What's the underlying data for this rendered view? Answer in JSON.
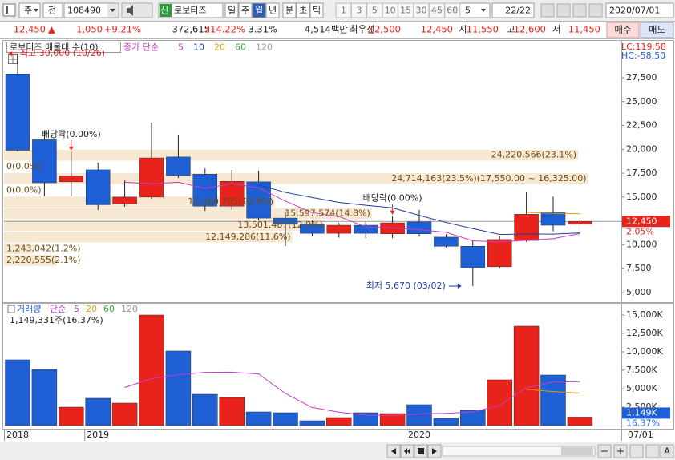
{
  "toolbar": {
    "code_type": "주",
    "period_type": "전",
    "code": "108490",
    "badge": "신",
    "name": "로보티즈",
    "periods": [
      "일",
      "주",
      "월",
      "년",
      "분",
      "초",
      "틱"
    ],
    "selected_period": "월",
    "intervals": [
      "1",
      "3",
      "5",
      "10",
      "15",
      "30",
      "45",
      "60"
    ],
    "interval_value": "5",
    "count": "22/22",
    "date": "2020/07/01"
  },
  "quote": {
    "price": "12,450",
    "change_sign": "▲",
    "change": "1,050",
    "change_pct": "+9.21%",
    "volume": "372,615",
    "volume_ratio": "214.22%",
    "turnover": "3.31%",
    "amount": "4,514백만",
    "best_label": "최우선",
    "ask": "12,500",
    "bid": "12,450",
    "open_label": "시",
    "open": "11,550",
    "high_label": "고",
    "high": "12,600",
    "low_label": "저",
    "low": "11,450",
    "buy": "매수",
    "sell": "매도"
  },
  "chart_data": [
    {
      "type": "candlestick",
      "title": "로보티즈 매물대 수(10)",
      "open": [
        27900,
        21000,
        16600,
        17850,
        14300,
        15000,
        19200,
        17400,
        14050,
        16600,
        12800,
        12150,
        11200,
        12050,
        11150,
        12400,
        10800,
        9850,
        7700,
        10450,
        13400,
        12150
      ],
      "high": [
        30000,
        22000,
        19700,
        18600,
        16750,
        22800,
        21550,
        18000,
        17850,
        17750,
        13400,
        12550,
        12300,
        12450,
        13000,
        13650,
        11100,
        10450,
        10900,
        15500,
        15050,
        12600
      ],
      "low": [
        19800,
        15100,
        15100,
        13650,
        14000,
        14800,
        17000,
        13550,
        13650,
        12550,
        9870,
        10900,
        10750,
        10700,
        10700,
        10880,
        9700,
        5670,
        7500,
        10290,
        11400,
        11450
      ],
      "close": [
        19900,
        16500,
        17200,
        14200,
        15000,
        19100,
        17250,
        14050,
        16650,
        12800,
        12150,
        11200,
        12050,
        11200,
        12300,
        11150,
        9850,
        7600,
        10550,
        13200,
        12050,
        12450
      ],
      "up_color": "#e8231b",
      "down_color": "#1f5fd6",
      "ylim": [
        4160,
        31280
      ],
      "yticks": [
        {
          "value": 5000,
          "label": "5,000"
        },
        {
          "value": 7500,
          "label": "7,500"
        },
        {
          "value": 10000,
          "label": "10,000"
        },
        {
          "value": 12500,
          "label": "12,500"
        },
        {
          "value": 15000,
          "label": "15,000"
        },
        {
          "value": 17500,
          "label": "17,500"
        },
        {
          "value": 20000,
          "label": "20,000"
        },
        {
          "value": 22500,
          "label": "22,500"
        },
        {
          "value": 25000,
          "label": "25,000"
        },
        {
          "value": 27500,
          "label": "27,500"
        }
      ],
      "moving_averages": {
        "label": "종가 단순",
        "series": [
          {
            "name": "5",
            "color": "#c63bc6",
            "values": [
              null,
              null,
              null,
              null,
              16560,
              16400,
              16550,
              15920,
              16410,
              15970,
              14580,
              13370,
              12970,
              11880,
              11780,
              11580,
              11310,
              10420,
              10290,
              10470,
              10650,
              11170
            ]
          },
          {
            "name": "10",
            "color": "#1f3da0",
            "values": [
              null,
              null,
              null,
              null,
              null,
              null,
              null,
              null,
              null,
              16265,
              15490,
              14960,
              14445,
              14145,
              13875,
              13080,
              12340,
              11695,
              11085,
              11125,
              11115,
              11240
            ]
          },
          {
            "name": "20",
            "color": "#e0a000",
            "values": [
              null,
              null,
              null,
              null,
              null,
              null,
              null,
              null,
              null,
              null,
              null,
              null,
              null,
              null,
              null,
              null,
              null,
              null,
              null,
              13400,
              13300,
              13250
            ]
          },
          {
            "name": "60",
            "color": "#3aa03a",
            "values": [
              null,
              null,
              null,
              null,
              null,
              null,
              null,
              null,
              null,
              null,
              null,
              null,
              null,
              null,
              null,
              null,
              null,
              null,
              null,
              null,
              null,
              null
            ]
          },
          {
            "name": "120",
            "color": "#999999",
            "values": [
              null,
              null,
              null,
              null,
              null,
              null,
              null,
              null,
              null,
              null,
              null,
              null,
              null,
              null,
              null,
              null,
              null,
              null,
              null,
              null,
              null,
              null
            ]
          }
        ]
      },
      "volume_profile": [
        {
          "label": "24,220,566(23.1%)",
          "volume": 24220566,
          "percent": 23.1,
          "high": 20000,
          "low": 18775
        },
        {
          "label": "0(0.0%)",
          "volume": 0,
          "percent": 0,
          "high": 18775,
          "low": 17550
        },
        {
          "label": "24,714,163(23.5%)(17,550.00 ~ 16,325.00)",
          "volume": 24714163,
          "percent": 23.5,
          "high": 17550,
          "low": 16325
        },
        {
          "label": "0(0.0%)",
          "volume": 0,
          "percent": 0,
          "high": 16325,
          "low": 15100
        },
        {
          "label": "11,400,795(10.9%)",
          "volume": 11400795,
          "percent": 10.9,
          "high": 15100,
          "low": 13875
        },
        {
          "label": "15,597,574(14.8%)",
          "volume": 15597574,
          "percent": 14.8,
          "high": 13875,
          "low": 12650
        },
        {
          "label": "13,501,487(12.9%)",
          "volume": 13501487,
          "percent": 12.9,
          "high": 12650,
          "low": 11425
        },
        {
          "label": "12,149,286(11.6%)",
          "volume": 12149286,
          "percent": 11.6,
          "high": 11425,
          "low": 10200
        },
        {
          "label": "1,243,042(1.2%)",
          "volume": 1243042,
          "percent": 1.2,
          "high": 10200,
          "low": 8975
        },
        {
          "label": "2,220,555(2.1%)",
          "volume": 2220555,
          "percent": 2.1,
          "high": 8975,
          "low": 7750
        }
      ],
      "high_note": {
        "text": "최고 30,000 (10/26)",
        "value": 30000
      },
      "low_note": {
        "text": "최저 5,670 (03/02)",
        "value": 5670
      },
      "dividend_labels": [
        null,
        null,
        "배당락(0.00%)",
        null,
        null,
        null,
        null,
        null,
        null,
        null,
        null,
        null,
        null,
        null,
        "배당락(0.00%)",
        null,
        null,
        null,
        null,
        null,
        null,
        null
      ],
      "last_price": {
        "value": 12450,
        "label": "12,450"
      },
      "last_change": "2.05%",
      "lc": "LC:119.58",
      "hc": "HC:-58.50"
    },
    {
      "type": "bar",
      "title": "거래량",
      "categories": [
        "2018",
        null,
        null,
        "2019",
        null,
        null,
        null,
        null,
        null,
        null,
        null,
        null,
        null,
        null,
        null,
        "2020",
        null,
        null,
        null,
        null,
        null,
        null
      ],
      "values": [
        8913,
        7609,
        2500,
        3696,
        3043,
        15000,
        10109,
        4239,
        3804,
        1848,
        1739,
        652,
        1087,
        1739,
        1630,
        2826,
        978,
        2065,
        6196,
        13478,
        6848,
        1149
      ],
      "ylim": [
        -435,
        16410
      ],
      "yticks": [
        {
          "value": 2500,
          "label": "2,500K"
        },
        {
          "value": 5000,
          "label": "5,000K"
        },
        {
          "value": 7500,
          "label": "7,500K"
        },
        {
          "value": 10000,
          "label": "10,000K"
        },
        {
          "value": 12500,
          "label": "12,500K"
        },
        {
          "value": 15000,
          "label": "15,000K"
        }
      ],
      "moving_averages": {
        "label": "단순",
        "series": [
          {
            "name": "5",
            "color": "#c63bc6",
            "values": [
              null,
              null,
              null,
              null,
              5152,
              6370,
              6870,
              7217,
              7239,
              7000,
              4348,
              2456,
              1826,
              1413,
              1369,
              1587,
              1652,
              1848,
              2739,
              5109,
              5913,
              5947
            ]
          },
          {
            "name": "20",
            "color": "#e0a000",
            "values": [
              null,
              null,
              null,
              null,
              null,
              null,
              null,
              null,
              null,
              null,
              null,
              null,
              null,
              null,
              null,
              null,
              null,
              null,
              null,
              4900,
              4600,
              4400
            ]
          },
          {
            "name": "60",
            "color": "#3aa03a",
            "values": [
              null,
              null,
              null,
              null,
              null,
              null,
              null,
              null,
              null,
              null,
              null,
              null,
              null,
              null,
              null,
              null,
              null,
              null,
              null,
              null,
              null,
              null
            ]
          },
          {
            "name": "120",
            "color": "#999999",
            "values": [
              null,
              null,
              null,
              null,
              null,
              null,
              null,
              null,
              null,
              null,
              null,
              null,
              null,
              null,
              null,
              null,
              null,
              null,
              null,
              null,
              null,
              null
            ]
          }
        ]
      },
      "info": "1,149,331주(16.37%)",
      "last_value": {
        "value": 1149,
        "label": "1,149K"
      },
      "last_change": "16.37%",
      "cursor_date": "07/01"
    }
  ],
  "bottom_bar": {
    "font_button": "A"
  }
}
